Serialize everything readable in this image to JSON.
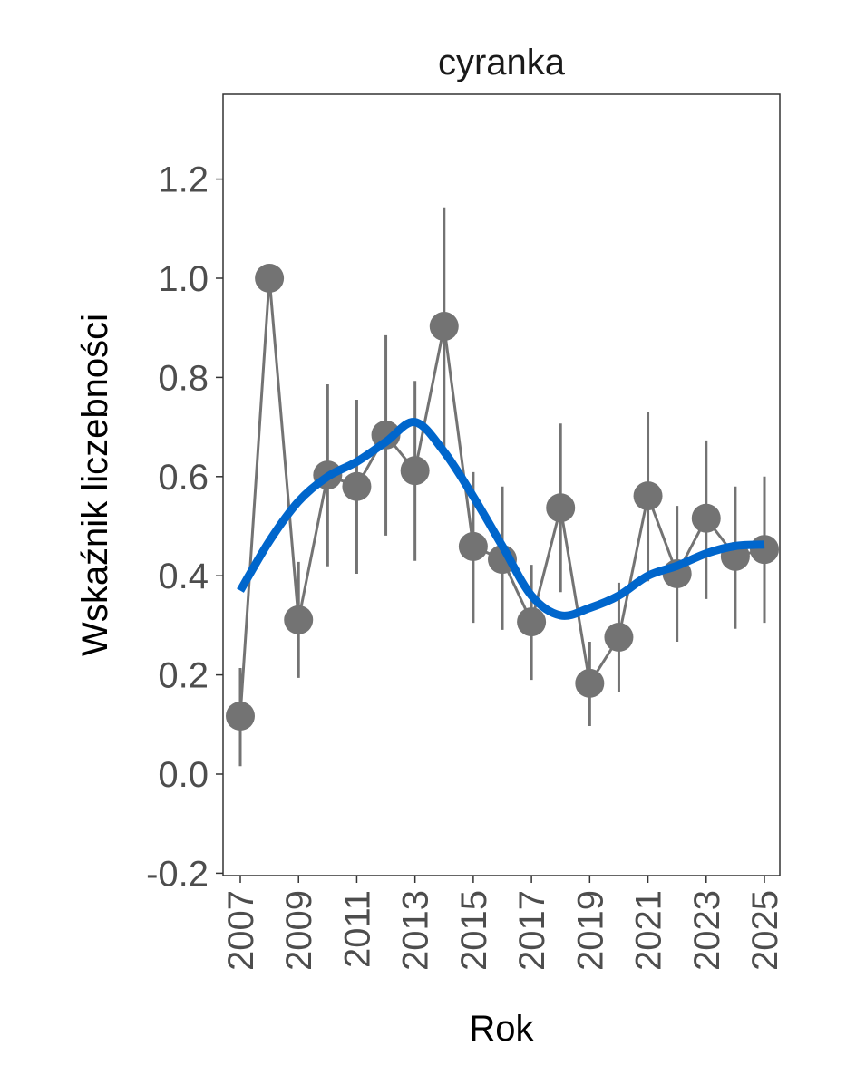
{
  "chart_data": {
    "type": "line",
    "title": "cyranka",
    "xlabel": "Rok",
    "ylabel": "Wskaźnik liczebności",
    "xlim": [
      2006.6,
      2025.5
    ],
    "ylim": [
      -0.21,
      1.37
    ],
    "yticks": [
      "-0.2",
      "0.0",
      "0.2",
      "0.4",
      "0.6",
      "0.8",
      "1.0",
      "1.2"
    ],
    "ytick_values": [
      -0.2,
      0.0,
      0.2,
      0.4,
      0.6,
      0.8,
      1.0,
      1.2
    ],
    "xticks": [
      "2007",
      "2009",
      "2011",
      "2013",
      "2015",
      "2017",
      "2019",
      "2021",
      "2023",
      "2025"
    ],
    "xtick_values": [
      2007,
      2009,
      2011,
      2013,
      2015,
      2017,
      2019,
      2021,
      2023,
      2025
    ],
    "grid": false,
    "series": [
      {
        "name": "index",
        "color": "#737373",
        "x": [
          2007,
          2008,
          2009,
          2010,
          2011,
          2012,
          2013,
          2014,
          2015,
          2016,
          2017,
          2018,
          2019,
          2020,
          2021,
          2022,
          2023,
          2024,
          2025
        ],
        "y": [
          0.117,
          1.0,
          0.311,
          0.603,
          0.58,
          0.684,
          0.612,
          0.903,
          0.459,
          0.433,
          0.307,
          0.537,
          0.183,
          0.276,
          0.561,
          0.404,
          0.516,
          0.439,
          0.453
        ],
        "lower": [
          0.016,
          null,
          0.194,
          0.419,
          0.404,
          0.481,
          0.43,
          0.66,
          0.305,
          0.291,
          0.19,
          0.367,
          0.097,
          0.166,
          0.389,
          0.267,
          0.353,
          0.293,
          0.305
        ],
        "upper": [
          0.214,
          null,
          0.428,
          0.786,
          0.755,
          0.885,
          0.793,
          1.143,
          0.609,
          0.58,
          0.422,
          0.707,
          0.267,
          0.386,
          0.731,
          0.541,
          0.673,
          0.58,
          0.6
        ]
      },
      {
        "name": "trend",
        "color": "#0066CC",
        "x": [
          2007,
          2008,
          2009,
          2010,
          2011,
          2012,
          2013,
          2014,
          2015,
          2016,
          2017,
          2018,
          2019,
          2020,
          2021,
          2022,
          2023,
          2024,
          2025
        ],
        "y": [
          0.37,
          0.47,
          0.55,
          0.6,
          0.63,
          0.67,
          0.71,
          0.65,
          0.56,
          0.46,
          0.36,
          0.32,
          0.335,
          0.36,
          0.4,
          0.42,
          0.445,
          0.46,
          0.463
        ]
      }
    ]
  }
}
